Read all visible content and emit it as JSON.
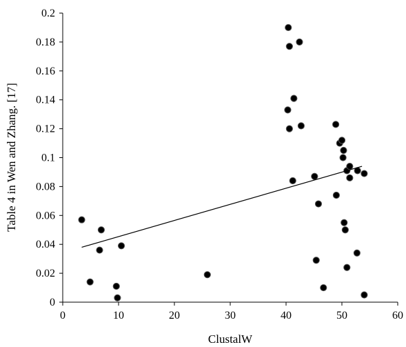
{
  "chart_data": {
    "type": "scatter",
    "title": "",
    "xlabel": "ClustalW",
    "ylabel": "Table 4 in Wen and Zhang. [17]",
    "xlim": [
      0,
      60
    ],
    "ylim": [
      0,
      0.2
    ],
    "xticks": [
      0,
      10,
      20,
      30,
      40,
      50,
      60
    ],
    "xtick_labels": [
      "0",
      "10",
      "20",
      "30",
      "40",
      "50",
      "60"
    ],
    "yticks": [
      0,
      0.02,
      0.04,
      0.06,
      0.08,
      0.1,
      0.12,
      0.14,
      0.16,
      0.18,
      0.2
    ],
    "ytick_labels": [
      "0",
      "0.02",
      "0.04",
      "0.06",
      "0.08",
      "0.1",
      "0.12",
      "0.14",
      "0.16",
      "0.18",
      "0.2"
    ],
    "grid": false,
    "legend": "none",
    "marker_color": "#000000",
    "series": [
      {
        "points": [
          [
            3.4,
            0.057
          ],
          [
            4.9,
            0.014
          ],
          [
            6.6,
            0.036
          ],
          [
            6.9,
            0.05
          ],
          [
            9.6,
            0.011
          ],
          [
            9.8,
            0.003
          ],
          [
            10.5,
            0.039
          ],
          [
            25.9,
            0.019
          ],
          [
            40.4,
            0.19
          ],
          [
            40.6,
            0.177
          ],
          [
            42.4,
            0.18
          ],
          [
            41.4,
            0.141
          ],
          [
            40.3,
            0.133
          ],
          [
            40.6,
            0.12
          ],
          [
            42.7,
            0.122
          ],
          [
            41.2,
            0.084
          ],
          [
            45.1,
            0.087
          ],
          [
            45.8,
            0.068
          ],
          [
            45.4,
            0.029
          ],
          [
            46.7,
            0.01
          ],
          [
            48.9,
            0.123
          ],
          [
            49.6,
            0.11
          ],
          [
            50.0,
            0.112
          ],
          [
            50.3,
            0.105
          ],
          [
            50.2,
            0.1
          ],
          [
            50.9,
            0.091
          ],
          [
            51.4,
            0.094
          ],
          [
            51.4,
            0.086
          ],
          [
            52.8,
            0.091
          ],
          [
            54.0,
            0.089
          ],
          [
            49.0,
            0.074
          ],
          [
            50.4,
            0.055
          ],
          [
            50.6,
            0.05
          ],
          [
            50.9,
            0.024
          ],
          [
            52.7,
            0.034
          ],
          [
            54.0,
            0.005
          ]
        ]
      }
    ],
    "trendline": {
      "type": "linear",
      "x": [
        3.4,
        53.6
      ],
      "y": [
        0.038,
        0.094
      ]
    }
  }
}
